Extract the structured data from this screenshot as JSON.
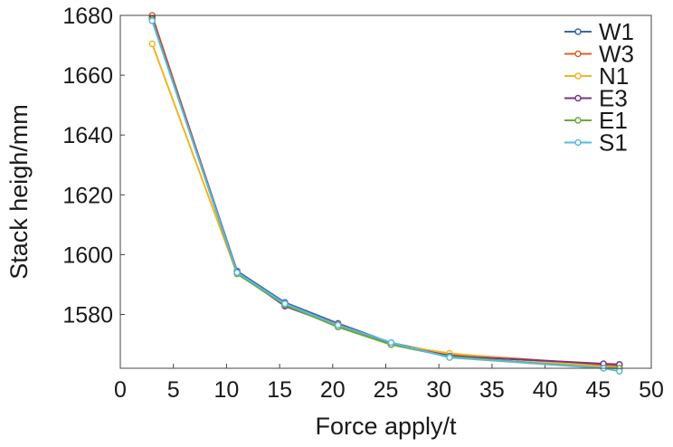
{
  "chart_data": {
    "type": "line",
    "title": "",
    "xlabel": "Force apply/t",
    "ylabel": "Stack heigh/mm",
    "xlim": [
      0,
      50
    ],
    "ylim": [
      1562,
      1680
    ],
    "xticks": [
      0,
      5,
      10,
      15,
      20,
      25,
      30,
      35,
      40,
      45,
      50
    ],
    "yticks": [
      1580,
      1600,
      1620,
      1640,
      1660,
      1680
    ],
    "grid": false,
    "legend_position": "top-right",
    "x": [
      3,
      11,
      15.5,
      20.5,
      25.5,
      31,
      45.5,
      47
    ],
    "series": [
      {
        "name": "W1",
        "color": "#3d66a8",
        "values": [
          1679.5,
          1594.5,
          1584,
          1577,
          1570.5,
          1566.5,
          1563,
          1562.8
        ]
      },
      {
        "name": "W3",
        "color": "#d9632a",
        "values": [
          1680,
          1594,
          1583.3,
          1576.6,
          1570.2,
          1566.8,
          1563.2,
          1563
        ]
      },
      {
        "name": "N1",
        "color": "#f0b429",
        "values": [
          1670.5,
          1593.6,
          1583,
          1576.3,
          1570,
          1567,
          1562.5,
          1562.3
        ]
      },
      {
        "name": "E3",
        "color": "#7a3585",
        "values": [
          1679,
          1594.1,
          1582.8,
          1576.2,
          1570.1,
          1566.1,
          1563.5,
          1563.3
        ]
      },
      {
        "name": "E1",
        "color": "#6aaa3a",
        "values": [
          1678.5,
          1593.6,
          1583.2,
          1575.8,
          1569.9,
          1565.9,
          1562.1,
          1562
        ]
      },
      {
        "name": "S1",
        "color": "#5bb8db",
        "values": [
          1678.2,
          1594,
          1583.6,
          1576.4,
          1570.6,
          1565.6,
          1562,
          1561
        ]
      }
    ]
  }
}
